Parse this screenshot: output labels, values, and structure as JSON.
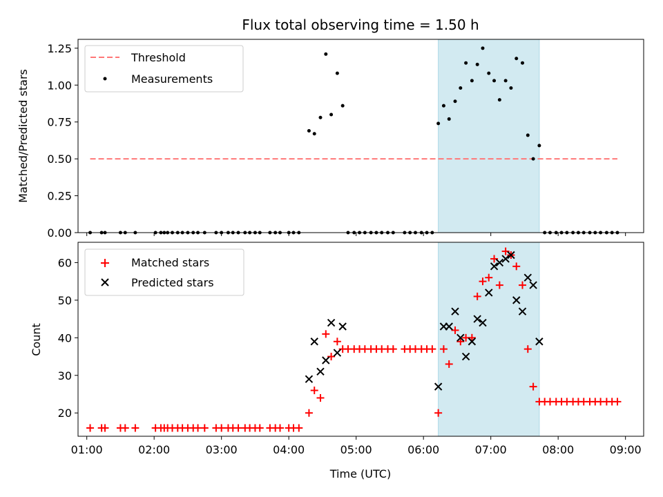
{
  "chart_data": [
    {
      "type": "scatter",
      "title": "Flux total observing time = 1.50 h",
      "ylabel": "Matched/Predicted stars",
      "xlabel": "",
      "xlim": [
        0.87,
        9.27
      ],
      "ylim": [
        0,
        1.31
      ],
      "x_tick_labels": [
        "01:00",
        "02:00",
        "03:00",
        "04:00",
        "05:00",
        "06:00",
        "07:00",
        "08:00",
        "09:00"
      ],
      "y_tick_labels": [
        "0.00",
        "0.25",
        "0.50",
        "0.75",
        "1.00",
        "1.25"
      ],
      "y_tick_values": [
        0,
        0.25,
        0.5,
        0.75,
        1.0,
        1.25
      ],
      "legend_position": "upper-left",
      "shaded_span": {
        "x_start": 6.22,
        "x_end": 7.72,
        "color": "#add8e6"
      },
      "threshold": {
        "name": "Threshold",
        "y": 0.5,
        "x_start": 1.05,
        "x_end": 8.88,
        "color": "#ff7777"
      },
      "series": [
        {
          "name": "Measurements",
          "marker": "dot",
          "color": "#000000",
          "points": [
            [
              1.05,
              0
            ],
            [
              1.22,
              0
            ],
            [
              1.27,
              0
            ],
            [
              1.5,
              0
            ],
            [
              1.57,
              0
            ],
            [
              1.72,
              0
            ],
            [
              2.02,
              0
            ],
            [
              2.1,
              0
            ],
            [
              2.15,
              0
            ],
            [
              2.2,
              0
            ],
            [
              2.27,
              0
            ],
            [
              2.35,
              0
            ],
            [
              2.42,
              0
            ],
            [
              2.5,
              0
            ],
            [
              2.58,
              0
            ],
            [
              2.65,
              0
            ],
            [
              2.75,
              0
            ],
            [
              2.92,
              0
            ],
            [
              3.0,
              0
            ],
            [
              3.1,
              0
            ],
            [
              3.17,
              0
            ],
            [
              3.25,
              0
            ],
            [
              3.35,
              0
            ],
            [
              3.42,
              0
            ],
            [
              3.5,
              0
            ],
            [
              3.57,
              0
            ],
            [
              3.72,
              0
            ],
            [
              3.8,
              0
            ],
            [
              3.87,
              0
            ],
            [
              4.0,
              0
            ],
            [
              4.07,
              0
            ],
            [
              4.15,
              0
            ],
            [
              4.3,
              0.69
            ],
            [
              4.38,
              0.67
            ],
            [
              4.47,
              0.78
            ],
            [
              4.55,
              1.21
            ],
            [
              4.63,
              0.8
            ],
            [
              4.72,
              1.08
            ],
            [
              4.8,
              0.86
            ],
            [
              4.88,
              0
            ],
            [
              4.97,
              0
            ],
            [
              5.05,
              0
            ],
            [
              5.13,
              0
            ],
            [
              5.22,
              0
            ],
            [
              5.3,
              0
            ],
            [
              5.38,
              0
            ],
            [
              5.47,
              0
            ],
            [
              5.55,
              0
            ],
            [
              5.72,
              0
            ],
            [
              5.8,
              0
            ],
            [
              5.88,
              0
            ],
            [
              5.97,
              0
            ],
            [
              6.05,
              0
            ],
            [
              6.13,
              0
            ],
            [
              6.22,
              0.74
            ],
            [
              6.3,
              0.86
            ],
            [
              6.38,
              0.77
            ],
            [
              6.47,
              0.89
            ],
            [
              6.55,
              0.98
            ],
            [
              6.63,
              1.15
            ],
            [
              6.72,
              1.03
            ],
            [
              6.8,
              1.14
            ],
            [
              6.88,
              1.25
            ],
            [
              6.97,
              1.08
            ],
            [
              7.05,
              1.03
            ],
            [
              7.13,
              0.9
            ],
            [
              7.22,
              1.03
            ],
            [
              7.3,
              0.98
            ],
            [
              7.38,
              1.18
            ],
            [
              7.47,
              1.15
            ],
            [
              7.55,
              0.66
            ],
            [
              7.63,
              0.5
            ],
            [
              7.72,
              0.59
            ],
            [
              7.8,
              0
            ],
            [
              7.88,
              0
            ],
            [
              7.97,
              0
            ],
            [
              8.05,
              0
            ],
            [
              8.13,
              0
            ],
            [
              8.22,
              0
            ],
            [
              8.3,
              0
            ],
            [
              8.38,
              0
            ],
            [
              8.47,
              0
            ],
            [
              8.55,
              0
            ],
            [
              8.63,
              0
            ],
            [
              8.72,
              0
            ],
            [
              8.8,
              0
            ],
            [
              8.88,
              0
            ]
          ]
        }
      ]
    },
    {
      "type": "scatter",
      "title": "",
      "ylabel": "Count",
      "xlabel": "Time (UTC)",
      "xlim": [
        0.87,
        9.27
      ],
      "ylim": [
        13.8,
        65.4
      ],
      "x_tick_labels": [
        "01:00",
        "02:00",
        "03:00",
        "04:00",
        "05:00",
        "06:00",
        "07:00",
        "08:00",
        "09:00"
      ],
      "y_tick_labels": [
        "20",
        "30",
        "40",
        "50",
        "60"
      ],
      "y_tick_values": [
        20,
        30,
        40,
        50,
        60
      ],
      "legend_position": "upper-left",
      "shaded_span": {
        "x_start": 6.22,
        "x_end": 7.72,
        "color": "#add8e6"
      },
      "series": [
        {
          "name": "Matched stars",
          "marker": "plus",
          "color": "#ff0000",
          "points": [
            [
              1.05,
              16
            ],
            [
              1.22,
              16
            ],
            [
              1.27,
              16
            ],
            [
              1.5,
              16
            ],
            [
              1.57,
              16
            ],
            [
              1.72,
              16
            ],
            [
              2.02,
              16
            ],
            [
              2.1,
              16
            ],
            [
              2.15,
              16
            ],
            [
              2.2,
              16
            ],
            [
              2.27,
              16
            ],
            [
              2.35,
              16
            ],
            [
              2.42,
              16
            ],
            [
              2.5,
              16
            ],
            [
              2.58,
              16
            ],
            [
              2.65,
              16
            ],
            [
              2.75,
              16
            ],
            [
              2.92,
              16
            ],
            [
              3.0,
              16
            ],
            [
              3.1,
              16
            ],
            [
              3.17,
              16
            ],
            [
              3.25,
              16
            ],
            [
              3.35,
              16
            ],
            [
              3.42,
              16
            ],
            [
              3.5,
              16
            ],
            [
              3.57,
              16
            ],
            [
              3.72,
              16
            ],
            [
              3.8,
              16
            ],
            [
              3.87,
              16
            ],
            [
              4.0,
              16
            ],
            [
              4.07,
              16
            ],
            [
              4.15,
              16
            ],
            [
              4.3,
              20
            ],
            [
              4.38,
              26
            ],
            [
              4.47,
              24
            ],
            [
              4.55,
              41
            ],
            [
              4.63,
              35
            ],
            [
              4.72,
              39
            ],
            [
              4.8,
              37
            ],
            [
              4.88,
              37
            ],
            [
              4.97,
              37
            ],
            [
              5.05,
              37
            ],
            [
              5.13,
              37
            ],
            [
              5.22,
              37
            ],
            [
              5.3,
              37
            ],
            [
              5.38,
              37
            ],
            [
              5.47,
              37
            ],
            [
              5.55,
              37
            ],
            [
              5.72,
              37
            ],
            [
              5.8,
              37
            ],
            [
              5.88,
              37
            ],
            [
              5.97,
              37
            ],
            [
              6.05,
              37
            ],
            [
              6.13,
              37
            ],
            [
              6.22,
              20
            ],
            [
              6.3,
              37
            ],
            [
              6.38,
              33
            ],
            [
              6.47,
              42
            ],
            [
              6.55,
              39
            ],
            [
              6.63,
              40
            ],
            [
              6.72,
              40
            ],
            [
              6.8,
              51
            ],
            [
              6.88,
              55
            ],
            [
              6.97,
              56
            ],
            [
              7.05,
              61
            ],
            [
              7.13,
              54
            ],
            [
              7.22,
              63
            ],
            [
              7.3,
              62
            ],
            [
              7.38,
              59
            ],
            [
              7.47,
              54
            ],
            [
              7.55,
              37
            ],
            [
              7.63,
              27
            ],
            [
              7.72,
              23
            ],
            [
              7.8,
              23
            ],
            [
              7.88,
              23
            ],
            [
              7.97,
              23
            ],
            [
              8.05,
              23
            ],
            [
              8.13,
              23
            ],
            [
              8.22,
              23
            ],
            [
              8.3,
              23
            ],
            [
              8.38,
              23
            ],
            [
              8.47,
              23
            ],
            [
              8.55,
              23
            ],
            [
              8.63,
              23
            ],
            [
              8.72,
              23
            ],
            [
              8.8,
              23
            ],
            [
              8.88,
              23
            ]
          ]
        },
        {
          "name": "Predicted stars",
          "marker": "x",
          "color": "#000000",
          "points": [
            [
              4.3,
              29
            ],
            [
              4.38,
              39
            ],
            [
              4.47,
              31
            ],
            [
              4.55,
              34
            ],
            [
              4.63,
              44
            ],
            [
              4.72,
              36
            ],
            [
              4.8,
              43
            ],
            [
              6.22,
              27
            ],
            [
              6.3,
              43
            ],
            [
              6.38,
              43
            ],
            [
              6.47,
              47
            ],
            [
              6.55,
              40
            ],
            [
              6.63,
              35
            ],
            [
              6.72,
              39
            ],
            [
              6.8,
              45
            ],
            [
              6.88,
              44
            ],
            [
              6.97,
              52
            ],
            [
              7.05,
              59
            ],
            [
              7.13,
              60
            ],
            [
              7.22,
              61
            ],
            [
              7.3,
              62
            ],
            [
              7.38,
              50
            ],
            [
              7.47,
              47
            ],
            [
              7.55,
              56
            ],
            [
              7.63,
              54
            ],
            [
              7.72,
              39
            ]
          ]
        }
      ]
    }
  ]
}
